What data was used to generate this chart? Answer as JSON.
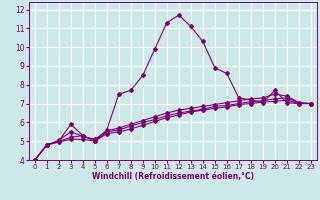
{
  "title": "",
  "xlabel": "Windchill (Refroidissement éolien,°C)",
  "background_color": "#cde8e8",
  "grid_color": "#ffffff",
  "line_color": "#7b0077",
  "xlim": [
    -0.5,
    23.5
  ],
  "ylim": [
    4,
    12.4
  ],
  "xticks": [
    0,
    1,
    2,
    3,
    4,
    5,
    6,
    7,
    8,
    9,
    10,
    11,
    12,
    13,
    14,
    15,
    16,
    17,
    18,
    19,
    20,
    21,
    22,
    23
  ],
  "yticks": [
    4,
    5,
    6,
    7,
    8,
    9,
    10,
    11,
    12
  ],
  "curves": [
    {
      "x": [
        0,
        1,
        2,
        3,
        4,
        5,
        6,
        7,
        8,
        9,
        10,
        11,
        12,
        13,
        14,
        15,
        16,
        17,
        18,
        19,
        20,
        21,
        22,
        23
      ],
      "y": [
        4.0,
        4.8,
        5.0,
        5.9,
        5.3,
        5.0,
        5.6,
        7.5,
        7.7,
        8.5,
        9.9,
        11.3,
        11.7,
        11.1,
        10.3,
        8.9,
        8.6,
        7.3,
        7.2,
        7.05,
        7.7,
        7.05,
        7.0,
        7.0
      ]
    },
    {
      "x": [
        0,
        1,
        2,
        3,
        4,
        5,
        6,
        7,
        8,
        9,
        10,
        11,
        12,
        13,
        14,
        15,
        16,
        17,
        18,
        19,
        20,
        21,
        22,
        23
      ],
      "y": [
        4.0,
        4.8,
        5.0,
        5.2,
        5.3,
        5.0,
        5.5,
        5.6,
        5.8,
        6.0,
        6.15,
        6.35,
        6.5,
        6.6,
        6.7,
        6.85,
        6.9,
        7.0,
        7.1,
        7.15,
        7.25,
        7.3,
        7.05,
        7.0
      ]
    },
    {
      "x": [
        0,
        1,
        2,
        3,
        4,
        5,
        6,
        7,
        8,
        9,
        10,
        11,
        12,
        13,
        14,
        15,
        16,
        17,
        18,
        19,
        20,
        21,
        22,
        23
      ],
      "y": [
        4.0,
        4.8,
        5.05,
        5.5,
        5.25,
        5.1,
        5.55,
        5.7,
        5.9,
        6.1,
        6.3,
        6.5,
        6.65,
        6.75,
        6.85,
        6.95,
        7.05,
        7.15,
        7.25,
        7.3,
        7.5,
        7.4,
        7.05,
        7.0
      ]
    },
    {
      "x": [
        0,
        1,
        2,
        3,
        4,
        5,
        6,
        7,
        8,
        9,
        10,
        11,
        12,
        13,
        14,
        15,
        16,
        17,
        18,
        19,
        20,
        21,
        22,
        23
      ],
      "y": [
        4.0,
        4.8,
        4.95,
        5.1,
        5.1,
        5.0,
        5.4,
        5.5,
        5.65,
        5.85,
        6.05,
        6.25,
        6.4,
        6.55,
        6.65,
        6.75,
        6.82,
        6.95,
        7.0,
        7.08,
        7.12,
        7.18,
        7.0,
        7.0
      ]
    }
  ],
  "marker": "D",
  "marker_size": 2.0,
  "line_width": 0.8,
  "tick_fontsize_x": 5.0,
  "tick_fontsize_y": 5.5,
  "xlabel_fontsize": 5.5
}
